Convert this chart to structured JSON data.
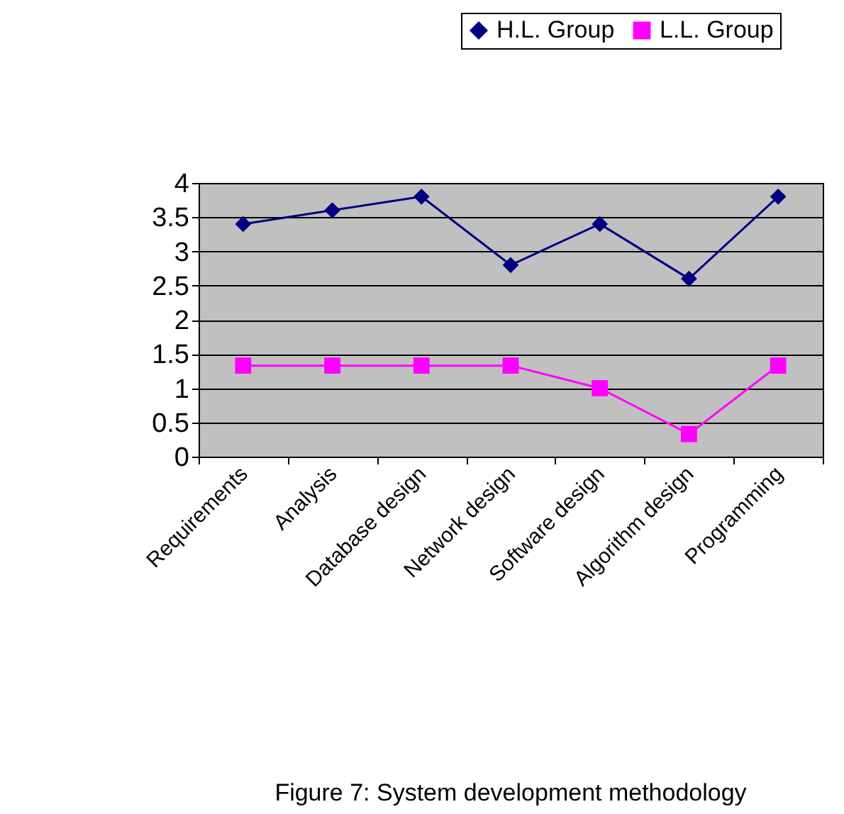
{
  "chart_data": {
    "type": "line",
    "title": "Figure 7: System development methodology",
    "categories": [
      "Requirements",
      "Analysis",
      "Database design",
      "Network design",
      "Software design",
      "Algorithm design",
      "Programming"
    ],
    "series": [
      {
        "name": "H.L. Group",
        "color": "#000080",
        "marker": "diamond",
        "values": [
          3.4,
          3.6,
          3.8,
          2.8,
          3.4,
          2.6,
          3.8
        ]
      },
      {
        "name": "L.L. Group",
        "color": "#ff00ff",
        "marker": "square",
        "values": [
          1.33,
          1.33,
          1.33,
          1.33,
          1.0,
          0.33,
          1.33
        ]
      }
    ],
    "ylim": [
      0,
      4
    ],
    "yticks": [
      0,
      0.5,
      1,
      1.5,
      2,
      2.5,
      3,
      3.5,
      4
    ],
    "grid": "y",
    "legend": "top",
    "line_style": "solid"
  }
}
